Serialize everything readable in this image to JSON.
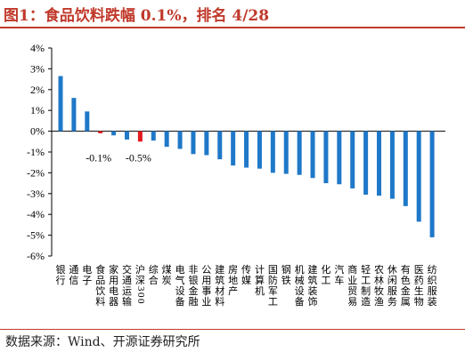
{
  "title": "图1：食品饮料跌幅 0.1%，排名 4/28",
  "source": "数据来源：Wind、开源证券研究所",
  "colors": {
    "title": "#c0392b",
    "bar": "#1f78c8",
    "highlight": "#e41a1c"
  },
  "chart_data": {
    "type": "bar",
    "ylim": [
      -6,
      4
    ],
    "yticks": [
      "4%",
      "3%",
      "2%",
      "1%",
      "0%",
      "-1%",
      "-2%",
      "-3%",
      "-4%",
      "-5%",
      "-6%"
    ],
    "categories": [
      "银行",
      "通信",
      "电子",
      "食品饮料",
      "家用电器",
      "交通运输",
      "沪深300",
      "综合",
      "煤炭",
      "电气设备",
      "非银金融",
      "公用事业",
      "建筑材料",
      "房地产",
      "传媒",
      "计算机",
      "国防军工",
      "钢铁",
      "机械设备",
      "建筑装饰",
      "化工",
      "汽车",
      "商业贸易",
      "轻工制造",
      "农林牧渔",
      "休闲服务",
      "有色金属",
      "医药生物",
      "纺织服装"
    ],
    "values": [
      2.65,
      1.6,
      0.95,
      -0.1,
      -0.2,
      -0.4,
      -0.5,
      -0.45,
      -0.75,
      -0.85,
      -1.1,
      -1.15,
      -1.35,
      -1.65,
      -1.75,
      -1.8,
      -2.0,
      -2.05,
      -2.1,
      -2.25,
      -2.5,
      -2.55,
      -2.75,
      -3.05,
      -3.1,
      -3.25,
      -3.6,
      -4.35,
      -5.1
    ],
    "highlight": [
      "食品饮料",
      "沪深300"
    ],
    "annotations": [
      {
        "category": "食品饮料",
        "text": "-0.1%"
      },
      {
        "category": "沪深300",
        "text": "-0.5%"
      }
    ]
  }
}
